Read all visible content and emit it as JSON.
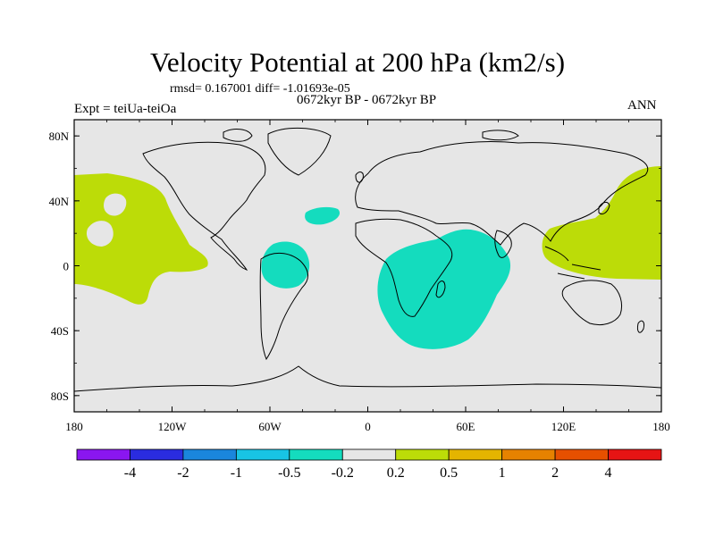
{
  "title": "Velocity Potential at 200 hPa (km2/s)",
  "stats": "rmsd= 0.167001 diff= -1.01693e-05",
  "subtitle": "0672kyr BP - 0672kyr BP",
  "experiment": "Expt = teiUa-teiOa",
  "season": "ANN",
  "map": {
    "projection": "cylindrical-equidistant",
    "lon_range": [
      -180,
      180
    ],
    "lat_range": [
      -90,
      90
    ],
    "x_ticks": [
      "180",
      "120W",
      "60W",
      "0",
      "60E",
      "120E",
      "180"
    ],
    "y_ticks": [
      "80N",
      "40N",
      "0",
      "40S",
      "80S"
    ],
    "background_color": "#e6e6e6",
    "coastline_color": "#000000"
  },
  "colorbar": {
    "labels": [
      "-4",
      "-2",
      "-1",
      "-0.5",
      "-0.2",
      "0.2",
      "0.5",
      "1",
      "2",
      "4"
    ],
    "colors": [
      "#8a16f0",
      "#2a2ce0",
      "#1a86dc",
      "#18c4e4",
      "#14dcbe",
      "#e6e6e6",
      "#bcdc08",
      "#e4b400",
      "#e68200",
      "#e65000",
      "#e61414"
    ]
  },
  "regions": [
    {
      "name": "central-pacific-positive",
      "category": "0.2 to 0.5",
      "color": "#bcdc08"
    },
    {
      "name": "western-pacific-positive",
      "category": "0.2 to 0.5",
      "color": "#bcdc08"
    },
    {
      "name": "south-america-negative",
      "category": "-0.5 to -0.2",
      "color": "#14dcbe"
    },
    {
      "name": "north-atlantic-negative",
      "category": "-0.5 to -0.2",
      "color": "#14dcbe"
    },
    {
      "name": "africa-indian-ocean-negative",
      "category": "-0.5 to -0.2",
      "color": "#14dcbe"
    }
  ]
}
